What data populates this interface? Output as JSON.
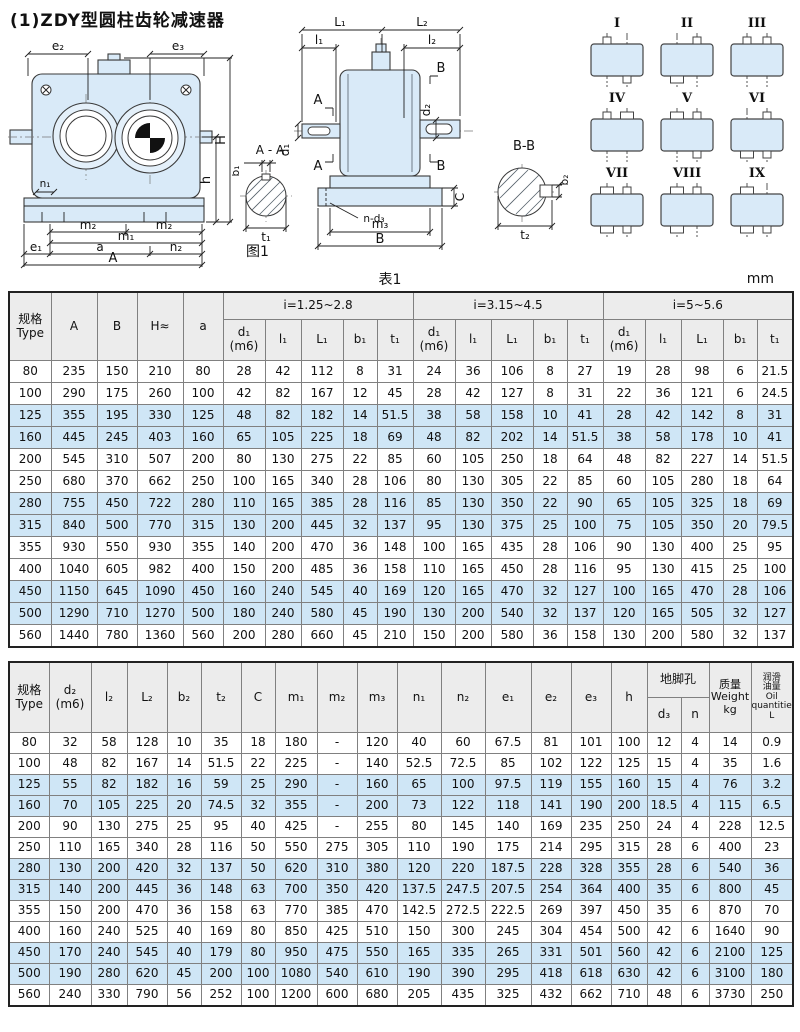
{
  "page": {
    "title": "(1)ZDY型圆柱齿轮减速器",
    "figure_caption": "图1",
    "table_caption": "表1",
    "unit": "mm"
  },
  "figure": {
    "front": {
      "labels": {
        "e2": "e₂",
        "e3": "e₃",
        "H": "H",
        "h": "h",
        "n1": "n₁",
        "m2_left": "m₂",
        "m2_right": "m₂",
        "m1": "m₁",
        "e1": "e₁",
        "a": "a",
        "n2": "n₂",
        "A": "A"
      },
      "section": {
        "title": "A - A",
        "b1": "b₁",
        "t1": "t₁"
      }
    },
    "side": {
      "labels": {
        "L1": "L₁",
        "L2": "L₂",
        "l1": "l₁",
        "l2": "l₂",
        "A_top": "A",
        "A_bottom": "A",
        "B_top": "B",
        "B_bottom": "B",
        "d1": "d₁",
        "d2": "d₂",
        "C": "C",
        "n_d3": "n-d₃",
        "m3": "m₃",
        "B_width": "B"
      },
      "section": {
        "title": "B-B",
        "b2": "b₂",
        "t2": "t₂"
      }
    },
    "mounting": {
      "items": [
        {
          "label": "I",
          "stubs": [
            "tl-s",
            "br-s"
          ]
        },
        {
          "label": "II",
          "stubs": [
            "tr-s",
            "bl-l"
          ]
        },
        {
          "label": "III",
          "stubs": [
            "tl-s",
            "tr-s"
          ]
        },
        {
          "label": "IV",
          "stubs": [
            "tl-s",
            "tr-l"
          ]
        },
        {
          "label": "V",
          "stubs": [
            "tl-l",
            "tr-s",
            "br-s"
          ]
        },
        {
          "label": "VI",
          "stubs": [
            "tr-s",
            "bl-l",
            "br-s"
          ]
        },
        {
          "label": "VII",
          "stubs": [
            "tl-l",
            "tr-s",
            "bl-l",
            "br-s"
          ]
        },
        {
          "label": "VIII",
          "stubs": [
            "tl-l",
            "tr-s",
            "bl-l"
          ]
        },
        {
          "label": "IX",
          "stubs": [
            "tl-l",
            "bl-l",
            "br-s"
          ]
        }
      ]
    }
  },
  "colors": {
    "drawing_fill": "#d9eaf8",
    "row_stripe": "#cfe6f6",
    "header_bg": "#ececec"
  },
  "table1": {
    "header_rows": [
      [
        {
          "t": "规格\nType",
          "rs": 2
        },
        {
          "t": "A",
          "rs": 2
        },
        {
          "t": "B",
          "rs": 2
        },
        {
          "t": "H≈",
          "rs": 2
        },
        {
          "t": "a",
          "rs": 2
        },
        {
          "t": "i=1.25~2.8",
          "cs": 5
        },
        {
          "t": "i=3.15~4.5",
          "cs": 5
        },
        {
          "t": "i=5~5.6",
          "cs": 5
        }
      ],
      [
        {
          "t": "d₁\n(m6)"
        },
        {
          "t": "l₁"
        },
        {
          "t": "L₁"
        },
        {
          "t": "b₁"
        },
        {
          "t": "t₁"
        },
        {
          "t": "d₁\n(m6)"
        },
        {
          "t": "l₁"
        },
        {
          "t": "L₁"
        },
        {
          "t": "b₁"
        },
        {
          "t": "t₁"
        },
        {
          "t": "d₁\n(m6)"
        },
        {
          "t": "l₁"
        },
        {
          "t": "L₁"
        },
        {
          "t": "b₁"
        },
        {
          "t": "t₁"
        }
      ]
    ],
    "rows": [
      [
        80,
        235,
        150,
        210,
        80,
        28,
        42,
        112,
        8,
        31,
        24,
        36,
        106,
        8,
        27,
        19,
        28,
        98,
        6,
        21.5
      ],
      [
        100,
        290,
        175,
        260,
        100,
        42,
        82,
        167,
        12,
        45,
        28,
        42,
        127,
        8,
        31,
        22,
        36,
        121,
        6,
        24.5
      ],
      [
        125,
        355,
        195,
        330,
        125,
        48,
        82,
        182,
        14,
        51.5,
        38,
        58,
        158,
        10,
        41,
        28,
        42,
        142,
        8,
        31
      ],
      [
        160,
        445,
        245,
        403,
        160,
        65,
        105,
        225,
        18,
        69,
        48,
        82,
        202,
        14,
        51.5,
        38,
        58,
        178,
        10,
        41
      ],
      [
        200,
        545,
        310,
        507,
        200,
        80,
        130,
        275,
        22,
        85,
        60,
        105,
        250,
        18,
        64,
        48,
        82,
        227,
        14,
        51.5
      ],
      [
        250,
        680,
        370,
        662,
        250,
        100,
        165,
        340,
        28,
        106,
        80,
        130,
        305,
        22,
        85,
        60,
        105,
        280,
        18,
        64
      ],
      [
        280,
        755,
        450,
        722,
        280,
        110,
        165,
        385,
        28,
        116,
        85,
        130,
        350,
        22,
        90,
        65,
        105,
        325,
        18,
        69
      ],
      [
        315,
        840,
        500,
        770,
        315,
        130,
        200,
        445,
        32,
        137,
        95,
        130,
        375,
        25,
        100,
        75,
        105,
        350,
        20,
        79.5
      ],
      [
        355,
        930,
        550,
        930,
        355,
        140,
        200,
        470,
        36,
        148,
        100,
        165,
        435,
        28,
        106,
        90,
        130,
        400,
        25,
        95
      ],
      [
        400,
        1040,
        605,
        982,
        400,
        150,
        200,
        485,
        36,
        158,
        110,
        165,
        450,
        28,
        116,
        95,
        130,
        415,
        25,
        100
      ],
      [
        450,
        1150,
        645,
        1090,
        450,
        160,
        240,
        545,
        40,
        169,
        120,
        165,
        470,
        32,
        127,
        100,
        165,
        470,
        28,
        106
      ],
      [
        500,
        1290,
        710,
        1270,
        500,
        180,
        240,
        580,
        45,
        190,
        130,
        200,
        540,
        32,
        137,
        120,
        165,
        505,
        32,
        127
      ],
      [
        560,
        1440,
        780,
        1360,
        560,
        200,
        280,
        660,
        45,
        210,
        150,
        200,
        580,
        36,
        158,
        130,
        200,
        580,
        32,
        137
      ]
    ]
  },
  "table2": {
    "header_rows": [
      [
        {
          "t": "规格\nType",
          "rs": 2
        },
        {
          "t": "d₂\n(m6)",
          "rs": 2
        },
        {
          "t": "l₂",
          "rs": 2
        },
        {
          "t": "L₂",
          "rs": 2
        },
        {
          "t": "b₂",
          "rs": 2
        },
        {
          "t": "t₂",
          "rs": 2
        },
        {
          "t": "C",
          "rs": 2
        },
        {
          "t": "m₁",
          "rs": 2
        },
        {
          "t": "m₂",
          "rs": 2
        },
        {
          "t": "m₃",
          "rs": 2
        },
        {
          "t": "n₁",
          "rs": 2
        },
        {
          "t": "n₂",
          "rs": 2
        },
        {
          "t": "e₁",
          "rs": 2
        },
        {
          "t": "e₂",
          "rs": 2
        },
        {
          "t": "e₃",
          "rs": 2
        },
        {
          "t": "h",
          "rs": 2
        },
        {
          "t": "地脚孔",
          "cs": 2
        },
        {
          "t": "质量\nWeight\nkg",
          "rs": 2,
          "cls": "med"
        },
        {
          "t": "润滑\n油量\nOil\nquantities\nL",
          "rs": 2,
          "cls": "small"
        }
      ],
      [
        {
          "t": "d₃"
        },
        {
          "t": "n"
        }
      ]
    ],
    "rows": [
      [
        80,
        32,
        58,
        128,
        10,
        35,
        18,
        180,
        "-",
        120,
        40,
        60,
        67.5,
        81,
        101,
        100,
        12,
        4,
        14,
        0.9
      ],
      [
        100,
        48,
        82,
        167,
        14,
        51.5,
        22,
        225,
        "-",
        140,
        52.5,
        72.5,
        85,
        102,
        122,
        125,
        15,
        4,
        35,
        1.6
      ],
      [
        125,
        55,
        82,
        182,
        16,
        59,
        25,
        290,
        "-",
        160,
        65,
        100,
        97.5,
        119,
        155,
        160,
        15,
        4,
        76,
        3.2
      ],
      [
        160,
        70,
        105,
        225,
        20,
        74.5,
        32,
        355,
        "-",
        200,
        73,
        122,
        118,
        141,
        190,
        200,
        18.5,
        4,
        115,
        6.5
      ],
      [
        200,
        90,
        130,
        275,
        25,
        95,
        40,
        425,
        "-",
        255,
        80,
        145,
        140,
        169,
        235,
        250,
        24,
        4,
        228,
        12.5
      ],
      [
        250,
        110,
        165,
        340,
        28,
        116,
        50,
        550,
        275,
        305,
        110,
        190,
        175,
        214,
        295,
        315,
        28,
        6,
        400,
        23
      ],
      [
        280,
        130,
        200,
        420,
        32,
        137,
        50,
        620,
        310,
        380,
        120,
        220,
        187.5,
        228,
        328,
        355,
        28,
        6,
        540,
        36
      ],
      [
        315,
        140,
        200,
        445,
        36,
        148,
        63,
        700,
        350,
        420,
        137.5,
        247.5,
        207.5,
        254,
        364,
        400,
        35,
        6,
        800,
        45
      ],
      [
        355,
        150,
        200,
        470,
        36,
        158,
        63,
        770,
        385,
        470,
        142.5,
        272.5,
        222.5,
        269,
        397,
        450,
        35,
        6,
        870,
        70
      ],
      [
        400,
        160,
        240,
        525,
        40,
        169,
        80,
        850,
        425,
        510,
        150,
        300,
        245,
        304,
        454,
        500,
        42,
        6,
        1640,
        90
      ],
      [
        450,
        170,
        240,
        545,
        40,
        179,
        80,
        950,
        475,
        550,
        165,
        335,
        265,
        331,
        501,
        560,
        42,
        6,
        2100,
        125
      ],
      [
        500,
        190,
        280,
        620,
        45,
        200,
        100,
        1080,
        540,
        610,
        190,
        390,
        295,
        418,
        618,
        630,
        42,
        6,
        3100,
        180
      ],
      [
        560,
        240,
        330,
        790,
        56,
        252,
        100,
        1200,
        600,
        680,
        205,
        435,
        325,
        432,
        662,
        710,
        48,
        6,
        3730,
        250
      ]
    ]
  }
}
